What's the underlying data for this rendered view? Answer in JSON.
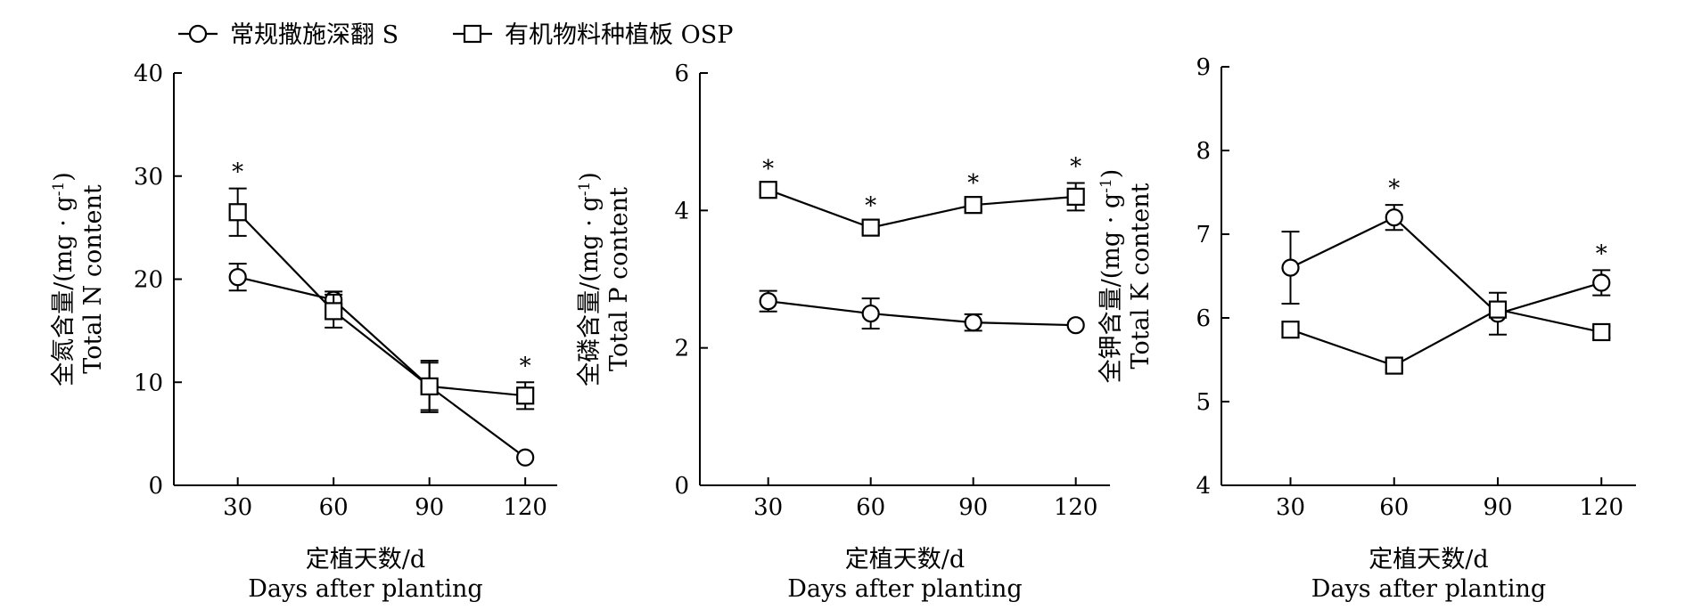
{
  "legend": {
    "items": [
      {
        "label": "常规撒施深翻 S",
        "marker": "circle"
      },
      {
        "label": "有机物料种植板 OSP",
        "marker": "square"
      }
    ]
  },
  "chart_data": [
    {
      "type": "line",
      "title": "",
      "ylabel_cn": "全氮含量/(mg · g",
      "ylabel_sup": "-1",
      "ylabel_close": ")",
      "ylabel_en": "Total N content",
      "xlabel_cn": "定植天数/d",
      "xlabel_en": "Days after planting",
      "x": [
        30,
        60,
        90,
        120
      ],
      "xlim": [
        10,
        130
      ],
      "ylim": [
        0,
        40
      ],
      "yticks": [
        0,
        10,
        20,
        30,
        40
      ],
      "series": [
        {
          "name": "常规撒施深翻 S",
          "marker": "circle",
          "values": [
            20.2,
            18.0,
            9.6,
            2.7
          ],
          "errors": [
            1.3,
            0.8,
            2.5,
            0.0
          ]
        },
        {
          "name": "有机物料种植板 OSP",
          "marker": "square",
          "values": [
            26.5,
            16.9,
            9.6,
            8.7
          ],
          "errors": [
            2.3,
            1.6,
            2.3,
            1.3
          ]
        }
      ],
      "significance": [
        {
          "x": 30,
          "label": "*"
        },
        {
          "x": 120,
          "label": "*"
        }
      ]
    },
    {
      "type": "line",
      "title": "",
      "ylabel_cn": "全磷含量/(mg · g",
      "ylabel_sup": "-1",
      "ylabel_close": ")",
      "ylabel_en": "Total P content",
      "xlabel_cn": "定植天数/d",
      "xlabel_en": "Days after planting",
      "x": [
        30,
        60,
        90,
        120
      ],
      "xlim": [
        10,
        130
      ],
      "ylim": [
        0,
        6
      ],
      "yticks": [
        0,
        2,
        4,
        6
      ],
      "series": [
        {
          "name": "常规撒施深翻 S",
          "marker": "circle",
          "values": [
            2.68,
            2.5,
            2.37,
            2.33
          ],
          "errors": [
            0.15,
            0.22,
            0.12,
            0.0
          ]
        },
        {
          "name": "有机物料种植板 OSP",
          "marker": "square",
          "values": [
            4.3,
            3.75,
            4.08,
            4.2
          ],
          "errors": [
            0.07,
            0.08,
            0.08,
            0.2
          ]
        }
      ],
      "significance": [
        {
          "x": 30,
          "label": "*"
        },
        {
          "x": 60,
          "label": "*"
        },
        {
          "x": 90,
          "label": "*"
        },
        {
          "x": 120,
          "label": "*"
        }
      ]
    },
    {
      "type": "line",
      "title": "",
      "ylabel_cn": "全钾含量/(mg · g",
      "ylabel_sup": "-1",
      "ylabel_close": ")",
      "ylabel_en": "Total K content",
      "xlabel_cn": "定植天数/d",
      "xlabel_en": "Days after planting",
      "x": [
        30,
        60,
        90,
        120
      ],
      "xlim": [
        10,
        130
      ],
      "ylim": [
        4,
        9
      ],
      "yticks": [
        4,
        5,
        6,
        7,
        8,
        9
      ],
      "series": [
        {
          "name": "常规撒施深翻 S",
          "marker": "circle",
          "values": [
            6.6,
            7.2,
            6.05,
            6.42
          ],
          "errors": [
            0.43,
            0.15,
            0.25,
            0.15
          ]
        },
        {
          "name": "有机物料种植板 OSP",
          "marker": "square",
          "values": [
            5.86,
            5.43,
            6.1,
            5.83
          ],
          "errors": [
            0.0,
            0.05,
            0.08,
            0.07
          ]
        }
      ],
      "significance": [
        {
          "x": 60,
          "label": "*"
        },
        {
          "x": 120,
          "label": "*"
        }
      ]
    }
  ]
}
